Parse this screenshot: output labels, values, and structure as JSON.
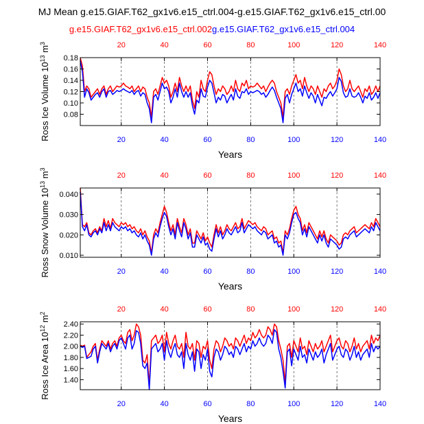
{
  "title": "MJ Mean g.e15.GIAF.T62_gx1v6.e15_ctrl.004-g.e15.GIAF.T62_gx1v6.e15_ctrl.00",
  "legend": {
    "series_a": "g.e15.GIAF.T62_gx1v6.e15_ctrl.002",
    "series_b": "g.e15.GIAF.T62_gx1v6.e15_ctrl.004"
  },
  "colors": {
    "series_a": "#ff0000",
    "series_b": "#0000ff",
    "axis": "#000000",
    "grid": "#555555"
  },
  "chart_data": [
    {
      "type": "line",
      "ylabel_prefix": "Ross Ice Volume 10",
      "ylabel_exp": "13",
      "ylabel_unit": " m",
      "ylabel_unit_exp": "3",
      "xlabel": "Years",
      "xlim": [
        1,
        140
      ],
      "ylim": [
        0.06,
        0.18
      ],
      "yticks": [
        0.08,
        0.1,
        0.12,
        0.14,
        0.16,
        0.18
      ],
      "ytick_labels": [
        "0.08",
        "0.10",
        "0.12",
        "0.14",
        "0.16",
        "0.18"
      ],
      "xticks_bottom": [
        20,
        40,
        60,
        80,
        100,
        120,
        140
      ],
      "xticks_top": [
        20,
        40,
        60,
        80,
        100,
        120,
        140
      ],
      "x_grid": [
        20,
        40,
        60,
        80,
        100,
        120
      ],
      "series": [
        {
          "name": "g.e15.GIAF.T62_gx1v6.e15_ctrl.002",
          "color": "#ff0000",
          "values": [
            0.18,
            0.165,
            0.12,
            0.13,
            0.125,
            0.11,
            0.115,
            0.12,
            0.125,
            0.115,
            0.125,
            0.13,
            0.115,
            0.125,
            0.13,
            0.12,
            0.125,
            0.13,
            0.128,
            0.13,
            0.135,
            0.13,
            0.128,
            0.125,
            0.13,
            0.12,
            0.125,
            0.13,
            0.12,
            0.128,
            0.125,
            0.11,
            0.1,
            0.075,
            0.12,
            0.125,
            0.115,
            0.13,
            0.145,
            0.135,
            0.14,
            0.13,
            0.11,
            0.12,
            0.135,
            0.12,
            0.145,
            0.13,
            0.12,
            0.13,
            0.12,
            0.13,
            0.105,
            0.09,
            0.12,
            0.11,
            0.14,
            0.125,
            0.12,
            0.14,
            0.155,
            0.15,
            0.13,
            0.115,
            0.125,
            0.12,
            0.13,
            0.125,
            0.115,
            0.12,
            0.13,
            0.12,
            0.14,
            0.125,
            0.12,
            0.135,
            0.13,
            0.14,
            0.125,
            0.13,
            0.128,
            0.13,
            0.135,
            0.13,
            0.125,
            0.13,
            0.12,
            0.128,
            0.135,
            0.14,
            0.135,
            0.12,
            0.11,
            0.1,
            0.075,
            0.12,
            0.125,
            0.115,
            0.13,
            0.14,
            0.15,
            0.135,
            0.14,
            0.125,
            0.145,
            0.13,
            0.12,
            0.13,
            0.125,
            0.115,
            0.13,
            0.12,
            0.11,
            0.125,
            0.12,
            0.13,
            0.135,
            0.125,
            0.13,
            0.14,
            0.16,
            0.15,
            0.13,
            0.12,
            0.125,
            0.14,
            0.125,
            0.12,
            0.125,
            0.13,
            0.12,
            0.11,
            0.125,
            0.12,
            0.13,
            0.115,
            0.12,
            0.13,
            0.12,
            0.13
          ]
        },
        {
          "name": "g.e15.GIAF.T62_gx1v6.e15_ctrl.004",
          "color": "#0000ff",
          "values": [
            0.175,
            0.155,
            0.11,
            0.125,
            0.118,
            0.105,
            0.11,
            0.115,
            0.118,
            0.11,
            0.12,
            0.125,
            0.11,
            0.12,
            0.122,
            0.115,
            0.118,
            0.122,
            0.12,
            0.122,
            0.125,
            0.122,
            0.12,
            0.118,
            0.122,
            0.115,
            0.12,
            0.122,
            0.112,
            0.118,
            0.115,
            0.1,
            0.09,
            0.065,
            0.11,
            0.115,
            0.105,
            0.12,
            0.135,
            0.125,
            0.128,
            0.12,
            0.1,
            0.11,
            0.125,
            0.11,
            0.135,
            0.12,
            0.11,
            0.12,
            0.11,
            0.118,
            0.095,
            0.08,
            0.105,
            0.1,
            0.125,
            0.112,
            0.11,
            0.128,
            0.14,
            0.135,
            0.118,
            0.1,
            0.11,
            0.105,
            0.115,
            0.112,
            0.1,
            0.108,
            0.115,
            0.105,
            0.125,
            0.112,
            0.108,
            0.12,
            0.118,
            0.125,
            0.115,
            0.12,
            0.118,
            0.12,
            0.122,
            0.12,
            0.115,
            0.118,
            0.11,
            0.115,
            0.122,
            0.128,
            0.122,
            0.11,
            0.1,
            0.09,
            0.065,
            0.108,
            0.115,
            0.1,
            0.115,
            0.125,
            0.135,
            0.12,
            0.125,
            0.112,
            0.13,
            0.118,
            0.108,
            0.118,
            0.112,
            0.1,
            0.115,
            0.105,
            0.095,
            0.11,
            0.108,
            0.115,
            0.12,
            0.112,
            0.118,
            0.125,
            0.145,
            0.138,
            0.118,
            0.11,
            0.112,
            0.125,
            0.112,
            0.11,
            0.112,
            0.118,
            0.11,
            0.1,
            0.112,
            0.108,
            0.118,
            0.105,
            0.11,
            0.118,
            0.108,
            0.118
          ]
        }
      ]
    },
    {
      "type": "line",
      "ylabel_prefix": "Ross Snow Volume 10",
      "ylabel_exp": "13",
      "ylabel_unit": " m",
      "ylabel_unit_exp": "3",
      "xlabel": "Years",
      "xlim": [
        1,
        140
      ],
      "ylim": [
        0.009,
        0.043
      ],
      "yticks": [
        0.01,
        0.02,
        0.03,
        0.04
      ],
      "ytick_labels": [
        "0.010",
        "0.020",
        "0.030",
        "0.040"
      ],
      "xticks_bottom": [
        20,
        40,
        60,
        80,
        100,
        120,
        140
      ],
      "xticks_top": [
        20,
        40,
        60,
        80,
        100,
        120,
        140
      ],
      "x_grid": [
        20,
        40,
        60,
        80,
        100,
        120
      ],
      "series": [
        {
          "name": "g.e15.GIAF.T62_gx1v6.e15_ctrl.002",
          "color": "#ff0000",
          "values": [
            0.043,
            0.025,
            0.024,
            0.026,
            0.021,
            0.02,
            0.022,
            0.023,
            0.021,
            0.024,
            0.022,
            0.028,
            0.024,
            0.027,
            0.023,
            0.028,
            0.026,
            0.025,
            0.024,
            0.026,
            0.025,
            0.026,
            0.024,
            0.025,
            0.023,
            0.024,
            0.022,
            0.021,
            0.023,
            0.02,
            0.022,
            0.019,
            0.017,
            0.011,
            0.02,
            0.023,
            0.021,
            0.026,
            0.03,
            0.034,
            0.031,
            0.026,
            0.022,
            0.025,
            0.02,
            0.028,
            0.024,
            0.021,
            0.028,
            0.025,
            0.02,
            0.023,
            0.016,
            0.016,
            0.022,
            0.02,
            0.018,
            0.021,
            0.017,
            0.019,
            0.016,
            0.014,
            0.02,
            0.025,
            0.021,
            0.024,
            0.02,
            0.022,
            0.025,
            0.023,
            0.022,
            0.024,
            0.026,
            0.023,
            0.024,
            0.028,
            0.023,
            0.025,
            0.027,
            0.026,
            0.025,
            0.026,
            0.024,
            0.023,
            0.022,
            0.024,
            0.023,
            0.02,
            0.021,
            0.022,
            0.018,
            0.019,
            0.016,
            0.017,
            0.011,
            0.022,
            0.02,
            0.023,
            0.028,
            0.032,
            0.034,
            0.03,
            0.028,
            0.022,
            0.025,
            0.021,
            0.026,
            0.024,
            0.022,
            0.02,
            0.018,
            0.022,
            0.019,
            0.022,
            0.018,
            0.016,
            0.02,
            0.019,
            0.018,
            0.017,
            0.015,
            0.016,
            0.02,
            0.021,
            0.02,
            0.022,
            0.023,
            0.024,
            0.021,
            0.022,
            0.023,
            0.024,
            0.025,
            0.024,
            0.023,
            0.026,
            0.024,
            0.028,
            0.026,
            0.024
          ]
        },
        {
          "name": "g.e15.GIAF.T62_gx1v6.e15_ctrl.004",
          "color": "#0000ff",
          "values": [
            0.041,
            0.024,
            0.022,
            0.025,
            0.02,
            0.019,
            0.021,
            0.022,
            0.02,
            0.023,
            0.021,
            0.026,
            0.022,
            0.025,
            0.022,
            0.026,
            0.024,
            0.023,
            0.022,
            0.024,
            0.023,
            0.024,
            0.022,
            0.023,
            0.021,
            0.022,
            0.02,
            0.019,
            0.021,
            0.018,
            0.02,
            0.017,
            0.015,
            0.01,
            0.018,
            0.021,
            0.019,
            0.024,
            0.028,
            0.031,
            0.029,
            0.024,
            0.02,
            0.023,
            0.018,
            0.026,
            0.022,
            0.019,
            0.026,
            0.023,
            0.018,
            0.021,
            0.014,
            0.014,
            0.02,
            0.018,
            0.016,
            0.019,
            0.015,
            0.016,
            0.013,
            0.012,
            0.018,
            0.023,
            0.019,
            0.022,
            0.018,
            0.02,
            0.023,
            0.021,
            0.02,
            0.022,
            0.024,
            0.021,
            0.022,
            0.026,
            0.021,
            0.023,
            0.025,
            0.024,
            0.023,
            0.024,
            0.022,
            0.021,
            0.02,
            0.022,
            0.021,
            0.018,
            0.019,
            0.02,
            0.016,
            0.017,
            0.014,
            0.015,
            0.01,
            0.02,
            0.018,
            0.021,
            0.026,
            0.03,
            0.031,
            0.028,
            0.026,
            0.02,
            0.023,
            0.019,
            0.024,
            0.022,
            0.02,
            0.018,
            0.016,
            0.02,
            0.017,
            0.02,
            0.016,
            0.014,
            0.018,
            0.017,
            0.016,
            0.015,
            0.013,
            0.014,
            0.018,
            0.019,
            0.018,
            0.02,
            0.021,
            0.022,
            0.019,
            0.02,
            0.021,
            0.022,
            0.023,
            0.022,
            0.021,
            0.024,
            0.022,
            0.026,
            0.024,
            0.022
          ]
        }
      ]
    },
    {
      "type": "line",
      "ylabel_prefix": "Ross Ice Area 10",
      "ylabel_exp": "12",
      "ylabel_unit": " m",
      "ylabel_unit_exp": "2",
      "xlabel": "Years",
      "xlim": [
        1,
        140
      ],
      "ylim": [
        1.22,
        2.44
      ],
      "yticks": [
        1.4,
        1.6,
        1.8,
        2.0,
        2.2,
        2.4
      ],
      "ytick_labels": [
        "1.40",
        "1.60",
        "1.80",
        "2.00",
        "2.20",
        "2.40"
      ],
      "xticks_bottom": [
        20,
        40,
        60,
        80,
        100,
        120,
        140
      ],
      "xticks_top": [
        20,
        40,
        60,
        80,
        100,
        120,
        140
      ],
      "x_grid": [
        20,
        40,
        60,
        80,
        100,
        120
      ],
      "series": [
        {
          "name": "g.e15.GIAF.T62_gx1v6.e15_ctrl.002",
          "color": "#ff0000",
          "values": [
            2.02,
            2.0,
            2.02,
            1.8,
            1.85,
            1.9,
            2.0,
            2.05,
            1.75,
            1.95,
            2.1,
            2.05,
            2.0,
            2.1,
            1.95,
            2.05,
            2.1,
            2.0,
            2.15,
            2.2,
            2.1,
            2.05,
            2.25,
            2.3,
            2.1,
            2.2,
            2.4,
            2.35,
            2.2,
            1.75,
            1.7,
            1.85,
            1.3,
            2.1,
            2.15,
            2.2,
            2.05,
            2.1,
            2.2,
            1.9,
            2.25,
            2.05,
            1.95,
            2.1,
            2.2,
            2.0,
            1.95,
            2.05,
            1.8,
            2.25,
            2.0,
            1.95,
            2.05,
            1.75,
            2.1,
            2.05,
            1.8,
            2.0,
            1.95,
            2.1,
            1.75,
            1.6,
            1.95,
            2.1,
            2.05,
            1.9,
            2.0,
            2.15,
            2.1,
            2.0,
            2.05,
            1.95,
            2.15,
            2.1,
            2.0,
            2.1,
            2.2,
            2.05,
            2.15,
            2.1,
            2.25,
            2.15,
            2.2,
            2.3,
            2.2,
            2.15,
            2.2,
            2.35,
            2.3,
            2.2,
            2.4,
            2.35,
            2.1,
            1.95,
            1.75,
            1.35,
            2.0,
            2.05,
            1.8,
            2.1,
            2.0,
            1.9,
            2.15,
            1.95,
            2.0,
            1.85,
            2.1,
            2.0,
            1.9,
            2.05,
            1.95,
            2.0,
            2.1,
            1.9,
            2.0,
            2.1,
            2.2,
            1.9,
            2.0,
            2.1,
            2.15,
            2.0,
            1.95,
            2.1,
            2.05,
            1.9,
            2.0,
            2.15,
            1.95,
            2.05,
            1.9,
            2.0,
            2.05,
            2.1,
            1.95,
            2.2,
            2.05,
            2.15,
            2.1,
            2.2
          ]
        },
        {
          "name": "g.e15.GIAF.T62_gx1v6.e15_ctrl.004",
          "color": "#0000ff",
          "values": [
            2.0,
            1.98,
            2.0,
            1.78,
            1.8,
            1.82,
            1.95,
            2.0,
            1.7,
            1.9,
            2.05,
            2.0,
            1.95,
            2.05,
            1.9,
            2.0,
            2.05,
            1.95,
            2.1,
            2.15,
            2.05,
            1.95,
            2.15,
            2.2,
            1.95,
            2.05,
            2.28,
            2.25,
            2.05,
            1.65,
            1.6,
            1.7,
            1.22,
            1.95,
            2.0,
            2.05,
            1.9,
            1.95,
            2.05,
            1.75,
            2.1,
            1.9,
            1.8,
            1.95,
            2.05,
            1.85,
            1.8,
            1.9,
            1.6,
            2.05,
            1.85,
            1.75,
            1.9,
            1.55,
            1.95,
            1.9,
            1.6,
            1.85,
            1.75,
            1.95,
            1.55,
            1.45,
            1.8,
            1.95,
            1.9,
            1.75,
            1.85,
            2.0,
            1.95,
            1.85,
            1.9,
            1.8,
            2.0,
            1.95,
            1.85,
            1.95,
            2.05,
            1.9,
            2.0,
            1.95,
            2.1,
            2.0,
            2.05,
            2.15,
            2.05,
            2.0,
            2.05,
            2.2,
            2.15,
            2.05,
            2.3,
            2.25,
            1.95,
            1.8,
            1.55,
            1.25,
            1.9,
            1.95,
            1.65,
            1.95,
            1.85,
            1.75,
            2.0,
            1.8,
            1.85,
            1.7,
            1.95,
            1.85,
            1.75,
            1.9,
            1.8,
            1.85,
            1.95,
            1.7,
            1.85,
            1.95,
            2.05,
            1.75,
            1.85,
            1.95,
            2.0,
            1.85,
            1.8,
            1.95,
            1.9,
            1.75,
            1.85,
            2.0,
            1.8,
            1.9,
            1.75,
            1.85,
            1.9,
            1.95,
            1.8,
            2.05,
            1.9,
            2.0,
            1.95,
            2.0
          ]
        }
      ]
    }
  ]
}
